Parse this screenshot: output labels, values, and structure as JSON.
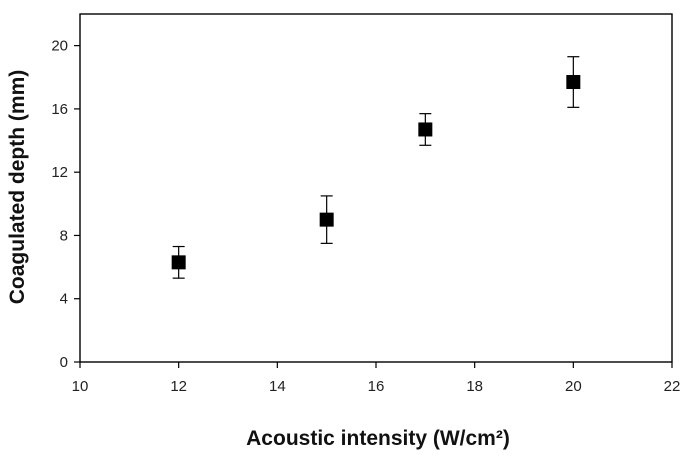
{
  "chart_data": {
    "type": "scatter",
    "title": "",
    "xlabel": "Acoustic intensity (W/cm²)",
    "ylabel": "Coagulated depth (mm)",
    "xlim": [
      10,
      22
    ],
    "ylim": [
      0,
      22
    ],
    "xticks": [
      "10",
      "12",
      "14",
      "16",
      "18",
      "20",
      "22"
    ],
    "yticks": [
      "0",
      "4",
      "8",
      "12",
      "16",
      "20"
    ],
    "grid": false,
    "legend": "none",
    "marker": "filled-square",
    "series": [
      {
        "x": [
          12,
          15,
          17,
          20
        ],
        "y": [
          6.3,
          9.0,
          14.7,
          17.7
        ],
        "yerr_low": [
          5.3,
          7.5,
          13.7,
          16.1
        ],
        "yerr_high": [
          7.3,
          10.5,
          15.7,
          19.3
        ]
      }
    ],
    "colors": {
      "marker": "#000000",
      "axis": "#000000"
    }
  }
}
